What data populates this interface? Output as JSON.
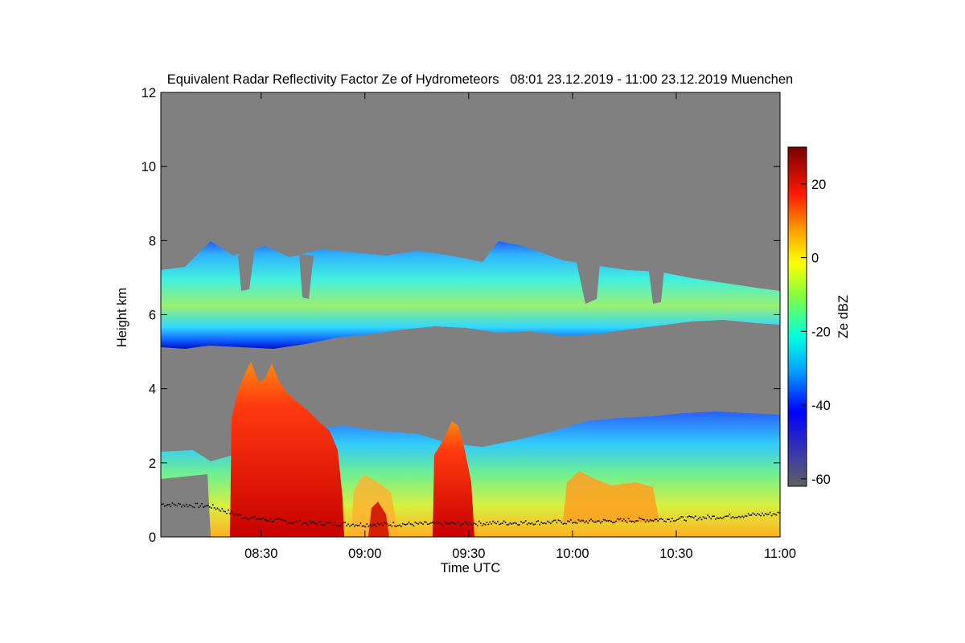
{
  "chart_data": {
    "type": "heatmap",
    "title": "Equivalent Radar Reflectivity Factor Ze of Hydrometeors   08:01 23.12.2019 - 11:00 23.12.2019 Muenchen",
    "xlabel": "Time UTC",
    "ylabel": "Height km",
    "xlim": [
      "08:01",
      "11:00"
    ],
    "ylim": [
      0,
      12
    ],
    "x_ticks": [
      "08:30",
      "09:00",
      "09:30",
      "10:00",
      "10:30",
      "11:00"
    ],
    "y_ticks": [
      0,
      2,
      4,
      6,
      8,
      10,
      12
    ],
    "colorbar": {
      "label": "Ze dBZ",
      "range": [
        -62,
        30
      ],
      "ticks": [
        -60,
        -40,
        -20,
        0,
        20
      ]
    },
    "background_color": "#808080",
    "layers": [
      {
        "name": "upper cloud layer",
        "base_km": 5.3,
        "top_km": 7.8,
        "ze_dbz": -20
      },
      {
        "name": "lower precipitation layer",
        "base_km": 0,
        "top_km": 3.5,
        "ze_dbz": -5
      },
      {
        "name": "convective cell 1",
        "time_start": "08:20",
        "time_end": "08:50",
        "top_km": 4.7,
        "ze_dbz": 20
      },
      {
        "name": "convective cell 2",
        "time_start": "09:20",
        "time_end": "09:32",
        "top_km": 3.2,
        "ze_dbz": 18
      }
    ],
    "cloud_base_series": {
      "x": [
        "08:01",
        "08:15",
        "08:25",
        "08:40",
        "09:00",
        "09:30",
        "10:00",
        "10:30",
        "10:50",
        "11:00"
      ],
      "y": [
        0.9,
        0.85,
        0.55,
        0.4,
        0.35,
        0.38,
        0.42,
        0.5,
        0.6,
        0.65
      ]
    }
  }
}
